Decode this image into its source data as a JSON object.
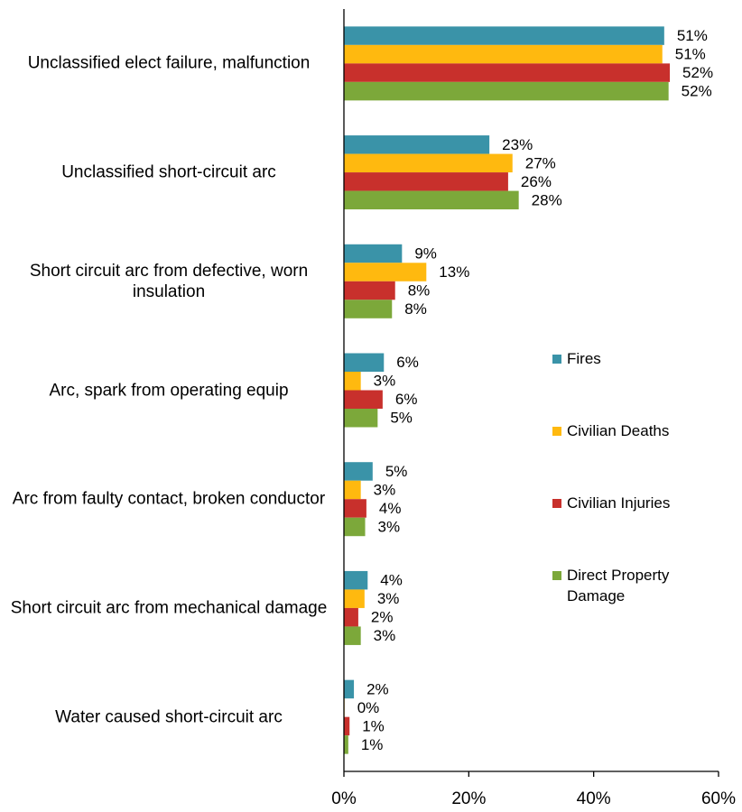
{
  "chart_data": {
    "type": "bar",
    "orientation": "horizontal",
    "categories": [
      "Unclassified elect failure, malfunction",
      "Unclassified short-circuit arc",
      "Short circuit arc from defective, worn insulation",
      "Arc, spark from operating equip",
      "Arc from faulty contact, broken conductor",
      "Short circuit arc from mechanical damage",
      "Water caused short-circuit arc"
    ],
    "series": [
      {
        "name": "Fires",
        "color": "#3a93a8",
        "values": [
          51.3,
          23.3,
          9.3,
          6.4,
          4.6,
          3.8,
          1.6
        ],
        "value_labels": [
          "51%",
          "23%",
          "9%",
          "6%",
          "5%",
          "4%",
          "2%"
        ]
      },
      {
        "name": "Civilian Deaths",
        "color": "#ffb90f",
        "values": [
          51.0,
          27.0,
          13.2,
          2.7,
          2.7,
          3.3,
          0.1
        ],
        "value_labels": [
          "51%",
          "27%",
          "13%",
          "3%",
          "3%",
          "3%",
          "0%"
        ]
      },
      {
        "name": "Civilian Injuries",
        "color": "#c8302c",
        "values": [
          52.2,
          26.3,
          8.2,
          6.2,
          3.6,
          2.3,
          0.9
        ],
        "value_labels": [
          "52%",
          "26%",
          "8%",
          "6%",
          "4%",
          "2%",
          "1%"
        ]
      },
      {
        "name": "Direct Property Damage",
        "color": "#7ca83a",
        "values": [
          52.0,
          28.0,
          7.7,
          5.4,
          3.4,
          2.7,
          0.7
        ],
        "value_labels": [
          "52%",
          "28%",
          "8%",
          "5%",
          "3%",
          "3%",
          "1%"
        ]
      }
    ],
    "xlim": [
      0,
      60
    ],
    "xticks": [
      {
        "value": 0,
        "label": "0%"
      },
      {
        "value": 20,
        "label": "20%"
      },
      {
        "value": 40,
        "label": "40%"
      },
      {
        "value": 60,
        "label": "60%"
      }
    ],
    "legend": "right"
  }
}
